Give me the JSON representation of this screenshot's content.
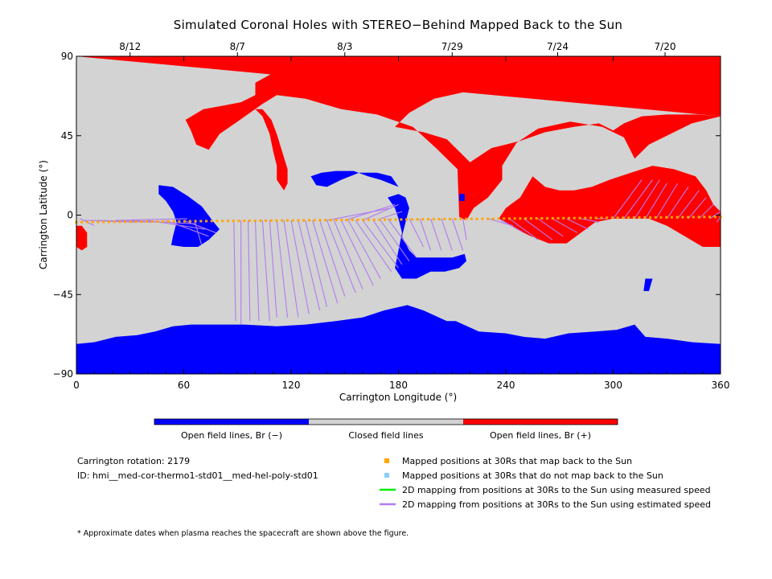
{
  "chart_data": {
    "type": "heatmap",
    "title": "Simulated Coronal Holes with STEREO−Behind Mapped Back to the Sun",
    "xlabel": "Carrington Longitude (°)",
    "ylabel": "Carrington Latitude (°)",
    "xlim": [
      0,
      360
    ],
    "ylim": [
      -90,
      90
    ],
    "x_ticks": [
      "0",
      "60",
      "120",
      "180",
      "240",
      "300",
      "360"
    ],
    "y_ticks": [
      "90",
      "45",
      "0",
      "−45",
      "−90"
    ],
    "top_date_ticks": [
      {
        "label": "8/12",
        "lon": 30
      },
      {
        "label": "8/7",
        "lon": 90
      },
      {
        "label": "8/3",
        "lon": 150
      },
      {
        "label": "7/29",
        "lon": 210
      },
      {
        "label": "7/24",
        "lon": 269
      },
      {
        "label": "7/20",
        "lon": 329
      }
    ],
    "colorbar": [
      {
        "label": "Open field lines, Br (−)",
        "color": "#0000ff"
      },
      {
        "label": "Closed field lines",
        "color": "#d3d3d3"
      },
      {
        "label": "Open field lines, Br (+)",
        "color": "#ff0000"
      }
    ],
    "legend": [
      {
        "label": "Mapped positions at 30Rs that map back to the Sun",
        "color": "#ffa500",
        "marker": "square"
      },
      {
        "label": "Mapped positions at 30Rs that do not map back to the Sun",
        "color": "#87cefa",
        "marker": "square"
      },
      {
        "label": "2D mapping from positions at 30Rs to the Sun using measured speed",
        "color": "#00ee00",
        "marker": "line"
      },
      {
        "label": "2D mapping from positions at 30Rs to the Sun using estimated speed",
        "color": "#b07cf0",
        "marker": "line"
      }
    ],
    "info": {
      "rotation": "Carrington rotation: 2179",
      "id": "ID: hmi__med-cor-thermo1-std01__med-hel-poly-std01"
    },
    "footnote": "* Approximate dates when plasma reaches the spacecraft are shown above the figure.",
    "colors": {
      "neg": "#0000ff",
      "closed": "#d3d3d3",
      "pos": "#ff0000",
      "mapped": "#ffa500",
      "line": "#b07cf0"
    },
    "regions": {
      "pos_north_cap": [
        [
          0,
          90
        ],
        [
          360,
          90
        ],
        [
          360,
          56
        ],
        [
          344,
          52
        ],
        [
          320,
          40
        ],
        [
          312,
          32
        ],
        [
          306,
          44
        ],
        [
          294,
          50
        ],
        [
          276,
          53
        ],
        [
          258,
          49
        ],
        [
          246,
          41
        ],
        [
          238,
          28
        ],
        [
          238,
          20
        ],
        [
          230,
          10
        ],
        [
          222,
          4
        ],
        [
          218,
          -3
        ],
        [
          214,
          -1
        ],
        [
          213,
          26
        ],
        [
          201,
          38
        ],
        [
          188,
          50
        ],
        [
          168,
          57
        ],
        [
          148,
          60
        ],
        [
          128,
          66
        ],
        [
          112,
          68
        ],
        [
          104,
          63
        ],
        [
          90,
          53
        ],
        [
          80,
          46
        ],
        [
          74,
          37
        ],
        [
          67,
          40
        ],
        [
          64,
          48
        ],
        [
          61,
          54
        ],
        [
          71,
          60
        ],
        [
          82,
          62
        ],
        [
          92,
          64
        ],
        [
          100,
          68
        ],
        [
          100,
          75
        ],
        [
          109,
          80
        ],
        [
          118,
          83
        ],
        [
          150,
          86
        ],
        [
          190,
          87
        ],
        [
          220,
          86
        ],
        [
          236,
          78
        ],
        [
          218,
          70
        ],
        [
          200,
          66
        ],
        [
          186,
          58
        ],
        [
          178,
          50
        ],
        [
          194,
          47
        ],
        [
          207,
          43
        ],
        [
          212,
          38
        ],
        [
          220,
          30
        ],
        [
          232,
          38
        ],
        [
          248,
          42
        ],
        [
          262,
          47
        ],
        [
          278,
          50
        ],
        [
          292,
          52
        ],
        [
          300,
          48
        ],
        [
          306,
          52
        ],
        [
          316,
          56
        ],
        [
          330,
          57
        ],
        [
          348,
          57
        ],
        [
          360,
          56
        ]
      ],
      "pos_arc_left": [
        [
          100,
          60
        ],
        [
          104,
          56
        ],
        [
          108,
          46
        ],
        [
          110,
          36
        ],
        [
          112,
          28
        ],
        [
          112,
          20
        ],
        [
          116,
          14
        ],
        [
          118,
          18
        ],
        [
          118,
          26
        ],
        [
          115,
          36
        ],
        [
          112,
          46
        ],
        [
          109,
          54
        ],
        [
          104,
          60
        ]
      ],
      "pos_right_belt": [
        [
          255,
          22
        ],
        [
          262,
          16
        ],
        [
          270,
          14
        ],
        [
          278,
          14
        ],
        [
          288,
          16
        ],
        [
          298,
          20
        ],
        [
          310,
          24
        ],
        [
          322,
          28
        ],
        [
          334,
          26
        ],
        [
          346,
          22
        ],
        [
          352,
          14
        ],
        [
          356,
          6
        ],
        [
          360,
          2
        ],
        [
          360,
          -18
        ],
        [
          350,
          -18
        ],
        [
          340,
          -12
        ],
        [
          330,
          -6
        ],
        [
          320,
          -2
        ],
        [
          310,
          -2
        ],
        [
          300,
          -2
        ],
        [
          290,
          -4
        ],
        [
          282,
          -10
        ],
        [
          274,
          -16
        ],
        [
          264,
          -16
        ],
        [
          254,
          -12
        ],
        [
          246,
          -8
        ],
        [
          240,
          -4
        ],
        [
          236,
          -2
        ],
        [
          240,
          4
        ],
        [
          248,
          10
        ]
      ],
      "pos_left_edge": [
        [
          0,
          -6
        ],
        [
          3,
          -6
        ],
        [
          6,
          -10
        ],
        [
          6,
          -18
        ],
        [
          3,
          -20
        ],
        [
          0,
          -18
        ]
      ],
      "neg_south_cap": [
        [
          0,
          -90
        ],
        [
          360,
          -90
        ],
        [
          360,
          -73
        ],
        [
          344,
          -72
        ],
        [
          330,
          -70
        ],
        [
          318,
          -69
        ],
        [
          312,
          -62
        ],
        [
          302,
          -65
        ],
        [
          290,
          -66
        ],
        [
          275,
          -67
        ],
        [
          262,
          -70
        ],
        [
          250,
          -69
        ],
        [
          240,
          -67
        ],
        [
          225,
          -66
        ],
        [
          212,
          -60
        ],
        [
          207,
          -60
        ],
        [
          194,
          -54
        ],
        [
          185,
          -51
        ],
        [
          172,
          -54
        ],
        [
          160,
          -58
        ],
        [
          145,
          -60
        ],
        [
          128,
          -62
        ],
        [
          112,
          -63
        ],
        [
          94,
          -62
        ],
        [
          76,
          -62
        ],
        [
          64,
          -62
        ],
        [
          54,
          -63
        ],
        [
          44,
          -66
        ],
        [
          34,
          -68
        ],
        [
          22,
          -69
        ],
        [
          10,
          -72
        ],
        [
          0,
          -73
        ]
      ],
      "neg_patch_left": [
        [
          46,
          17
        ],
        [
          54,
          16
        ],
        [
          62,
          11
        ],
        [
          70,
          5
        ],
        [
          76,
          -3
        ],
        [
          80,
          -8
        ],
        [
          74,
          -14
        ],
        [
          68,
          -18
        ],
        [
          60,
          -18
        ],
        [
          53,
          -17
        ],
        [
          54,
          -12
        ],
        [
          56,
          -4
        ],
        [
          54,
          2
        ],
        [
          50,
          8
        ],
        [
          46,
          12
        ]
      ],
      "neg_patch_center": [
        [
          131,
          22
        ],
        [
          137,
          24
        ],
        [
          145,
          25
        ],
        [
          155,
          25
        ],
        [
          163,
          22
        ],
        [
          170,
          20
        ],
        [
          175,
          18
        ],
        [
          180,
          16
        ],
        [
          176,
          22
        ],
        [
          168,
          24
        ],
        [
          158,
          24
        ],
        [
          148,
          20
        ],
        [
          140,
          16
        ],
        [
          134,
          17
        ]
      ],
      "neg_patch_center2": [
        [
          174,
          10
        ],
        [
          180,
          12
        ],
        [
          184,
          10
        ],
        [
          186,
          4
        ],
        [
          184,
          -4
        ],
        [
          182,
          -12
        ],
        [
          186,
          -20
        ],
        [
          190,
          -24
        ],
        [
          200,
          -24
        ],
        [
          210,
          -24
        ],
        [
          217,
          -22
        ],
        [
          218,
          -26
        ],
        [
          214,
          -30
        ],
        [
          206,
          -32
        ],
        [
          198,
          -32
        ],
        [
          190,
          -36
        ],
        [
          182,
          -36
        ],
        [
          178,
          -30
        ],
        [
          180,
          -20
        ],
        [
          182,
          -10
        ],
        [
          180,
          -2
        ],
        [
          178,
          4
        ]
      ],
      "neg_dot1": [
        [
          214,
          12
        ],
        [
          217,
          12
        ],
        [
          217,
          8
        ],
        [
          214,
          8
        ]
      ],
      "neg_dot2": [
        [
          318,
          -36
        ],
        [
          322,
          -36
        ],
        [
          320,
          -43
        ],
        [
          317,
          -43
        ]
      ]
    },
    "mapped_points": {
      "lon_start": 0,
      "lon_end": 360,
      "lat_start": -4,
      "lat_end": -1,
      "count": 120
    },
    "mapping_lines": [
      [
        [
          2,
          -2
        ],
        [
          10,
          -6
        ]
      ],
      [
        [
          4,
          -3
        ],
        [
          34,
          -4
        ]
      ],
      [
        [
          8,
          -3
        ],
        [
          43,
          -4
        ]
      ],
      [
        [
          12,
          -3
        ],
        [
          52,
          -4
        ]
      ],
      [
        [
          22,
          -3
        ],
        [
          62,
          -2
        ]
      ],
      [
        [
          30,
          -3
        ],
        [
          67,
          -5
        ]
      ],
      [
        [
          40,
          -3
        ],
        [
          72,
          -8
        ]
      ],
      [
        [
          50,
          -3
        ],
        [
          74,
          -12
        ]
      ],
      [
        [
          60,
          -3
        ],
        [
          78,
          -10
        ]
      ],
      [
        [
          66,
          -3
        ],
        [
          70,
          -17
        ]
      ],
      [
        [
          88,
          -3
        ],
        [
          89,
          -60
        ]
      ],
      [
        [
          92,
          -3
        ],
        [
          92,
          -62
        ]
      ],
      [
        [
          96,
          -3
        ],
        [
          97,
          -60
        ]
      ],
      [
        [
          100,
          -3
        ],
        [
          102,
          -60
        ]
      ],
      [
        [
          104,
          -3
        ],
        [
          108,
          -60
        ]
      ],
      [
        [
          108,
          -3
        ],
        [
          112,
          -58
        ]
      ],
      [
        [
          112,
          -3
        ],
        [
          118,
          -58
        ]
      ],
      [
        [
          116,
          -3
        ],
        [
          124,
          -58
        ]
      ],
      [
        [
          120,
          -3
        ],
        [
          130,
          -56
        ]
      ],
      [
        [
          124,
          -3
        ],
        [
          136,
          -54
        ]
      ],
      [
        [
          128,
          -3
        ],
        [
          140,
          -52
        ]
      ],
      [
        [
          132,
          -3
        ],
        [
          146,
          -50
        ]
      ],
      [
        [
          136,
          -3
        ],
        [
          150,
          -46
        ]
      ],
      [
        [
          140,
          -3
        ],
        [
          156,
          -44
        ]
      ],
      [
        [
          144,
          -3
        ],
        [
          160,
          -42
        ]
      ],
      [
        [
          148,
          -3
        ],
        [
          166,
          -40
        ]
      ],
      [
        [
          152,
          -3
        ],
        [
          170,
          -36
        ]
      ],
      [
        [
          156,
          -3
        ],
        [
          176,
          -32
        ]
      ],
      [
        [
          160,
          -3
        ],
        [
          180,
          -30
        ]
      ],
      [
        [
          166,
          -3
        ],
        [
          182,
          -28
        ]
      ],
      [
        [
          170,
          -3
        ],
        [
          186,
          -26
        ]
      ],
      [
        [
          174,
          -2
        ],
        [
          190,
          -24
        ]
      ],
      [
        [
          140,
          -3
        ],
        [
          176,
          4
        ]
      ],
      [
        [
          150,
          -3
        ],
        [
          178,
          6
        ]
      ],
      [
        [
          160,
          -3
        ],
        [
          180,
          6
        ]
      ],
      [
        [
          170,
          -2
        ],
        [
          182,
          2
        ]
      ],
      [
        [
          186,
          -2
        ],
        [
          194,
          -18
        ]
      ],
      [
        [
          192,
          -2
        ],
        [
          198,
          -20
        ]
      ],
      [
        [
          198,
          -2
        ],
        [
          204,
          -20
        ]
      ],
      [
        [
          204,
          -2
        ],
        [
          210,
          -20
        ]
      ],
      [
        [
          210,
          -2
        ],
        [
          216,
          -20
        ]
      ],
      [
        [
          216,
          -2
        ],
        [
          218,
          -14
        ]
      ],
      [
        [
          230,
          -2
        ],
        [
          244,
          -6
        ]
      ],
      [
        [
          236,
          -2
        ],
        [
          250,
          -10
        ]
      ],
      [
        [
          242,
          -2
        ],
        [
          258,
          -14
        ]
      ],
      [
        [
          250,
          -2
        ],
        [
          266,
          -14
        ]
      ],
      [
        [
          258,
          -2
        ],
        [
          272,
          -12
        ]
      ],
      [
        [
          266,
          -2
        ],
        [
          280,
          -10
        ]
      ],
      [
        [
          274,
          -2
        ],
        [
          286,
          -8
        ]
      ],
      [
        [
          282,
          -2
        ],
        [
          292,
          -4
        ]
      ],
      [
        [
          290,
          -2
        ],
        [
          296,
          -2
        ]
      ],
      [
        [
          300,
          -2
        ],
        [
          316,
          20
        ]
      ],
      [
        [
          306,
          -2
        ],
        [
          322,
          20
        ]
      ],
      [
        [
          312,
          -2
        ],
        [
          326,
          20
        ]
      ],
      [
        [
          318,
          -2
        ],
        [
          330,
          18
        ]
      ],
      [
        [
          324,
          -2
        ],
        [
          336,
          18
        ]
      ],
      [
        [
          330,
          -2
        ],
        [
          342,
          16
        ]
      ],
      [
        [
          336,
          -2
        ],
        [
          348,
          14
        ]
      ],
      [
        [
          342,
          -2
        ],
        [
          352,
          10
        ]
      ],
      [
        [
          348,
          -2
        ],
        [
          356,
          6
        ]
      ],
      [
        [
          354,
          -2
        ],
        [
          360,
          2
        ]
      ],
      [
        [
          360,
          -1
        ],
        [
          358,
          -4
        ]
      ]
    ]
  }
}
